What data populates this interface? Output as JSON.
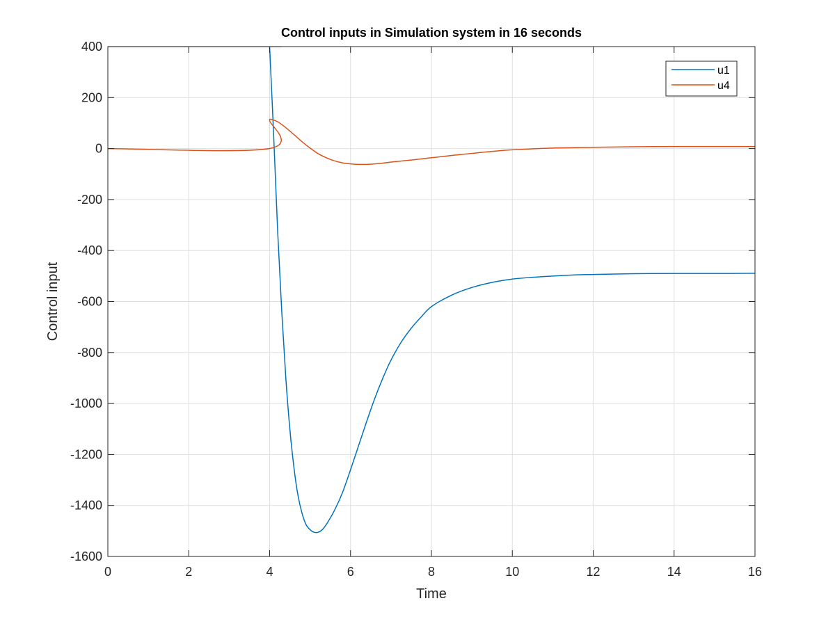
{
  "chart_data": {
    "type": "line",
    "title": "Control inputs in Simulation system in 16 seconds",
    "xlabel": "Time",
    "ylabel": "Control input",
    "xlim": [
      0,
      16
    ],
    "ylim": [
      -1600,
      400
    ],
    "xticks": [
      0,
      2,
      4,
      6,
      8,
      10,
      12,
      14,
      16
    ],
    "xtick_labels": [
      "0",
      "2",
      "4",
      "6",
      "8",
      "10",
      "12",
      "14",
      "16"
    ],
    "yticks": [
      400,
      200,
      0,
      -200,
      -400,
      -600,
      -800,
      -1000,
      -1200,
      -1400,
      -1600
    ],
    "ytick_labels": [
      "400",
      "200",
      "0",
      "-200",
      "-400",
      "-600",
      "-800",
      "-1000",
      "-1200",
      "-1400",
      "-1600"
    ],
    "grid": true,
    "legend_position": "top-right",
    "series": [
      {
        "name": "u1",
        "color": "#0072BD",
        "x": [
          0,
          3.99,
          4.0,
          4.1,
          4.2,
          4.3,
          4.4,
          4.5,
          4.6,
          4.7,
          4.8,
          4.9,
          5.0,
          5.1,
          5.2,
          5.3,
          5.4,
          5.6,
          5.8,
          6.0,
          6.2,
          6.4,
          6.6,
          6.8,
          7.0,
          7.25,
          7.5,
          7.75,
          8.0,
          8.5,
          9.0,
          9.5,
          10.0,
          10.5,
          11.0,
          11.5,
          12.0,
          13.0,
          14.0,
          15.0,
          16.0
        ],
        "y": [
          400,
          400,
          400,
          50,
          -330,
          -640,
          -900,
          -1100,
          -1250,
          -1360,
          -1430,
          -1475,
          -1495,
          -1505,
          -1505,
          -1495,
          -1475,
          -1420,
          -1350,
          -1260,
          -1165,
          -1070,
          -980,
          -900,
          -830,
          -760,
          -705,
          -660,
          -620,
          -575,
          -545,
          -525,
          -512,
          -505,
          -500,
          -496,
          -494,
          -491,
          -490,
          -490,
          -489
        ]
      },
      {
        "name": "u4",
        "color": "#D95319",
        "x": [
          0,
          3.99,
          4.0,
          4.02,
          4.2,
          4.4,
          4.6,
          4.8,
          5.0,
          5.2,
          5.4,
          5.6,
          5.8,
          6.0,
          6.2,
          6.4,
          6.6,
          6.8,
          7.0,
          7.5,
          8.0,
          8.5,
          9.0,
          9.5,
          10.0,
          11.0,
          12.0,
          13.0,
          14.0,
          15.0,
          16.0
        ],
        "y": [
          0,
          0,
          110,
          115,
          105,
          82,
          55,
          27,
          2,
          -20,
          -36,
          -48,
          -56,
          -60,
          -62,
          -62,
          -60,
          -57,
          -53,
          -45,
          -36,
          -27,
          -19,
          -11,
          -5,
          2,
          5,
          7,
          8,
          8,
          8
        ]
      }
    ]
  }
}
